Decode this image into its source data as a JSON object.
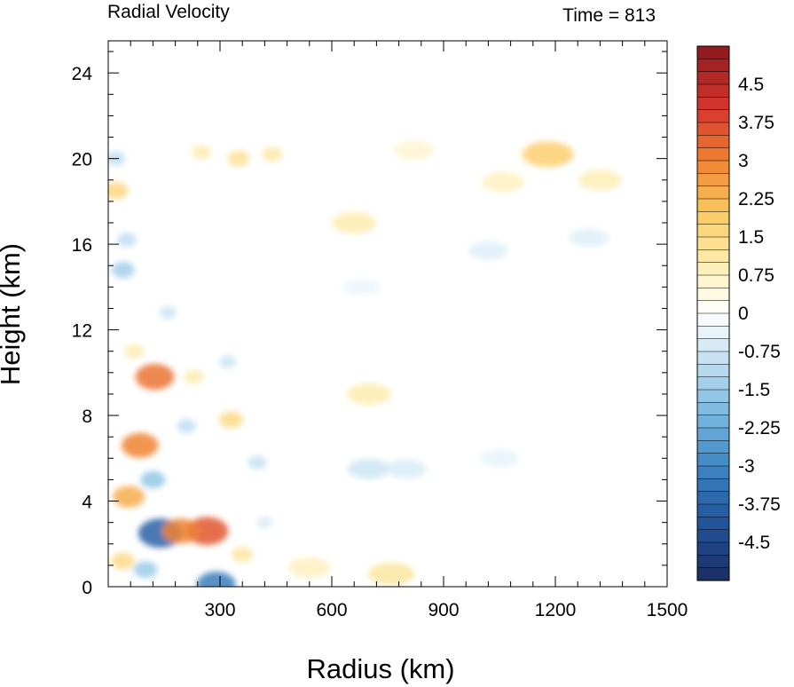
{
  "chart_data": {
    "type": "heatmap",
    "title_left": "Radial Velocity",
    "title_right": "Time = 813",
    "xlabel": "Radius (km)",
    "ylabel": "Height (km)",
    "xlim": [
      0,
      1500
    ],
    "ylim": [
      0,
      25.5
    ],
    "x_ticks": [
      300,
      600,
      900,
      1200,
      1500
    ],
    "y_ticks": [
      0,
      4,
      8,
      12,
      16,
      20,
      24
    ],
    "colorbar": {
      "min": -5.25,
      "max": 5.25,
      "step": 0.25,
      "labels": [
        "4.5",
        "3.75",
        "3",
        "2.25",
        "1.5",
        "0.75",
        "0",
        "-0.75",
        "-1.5",
        "-2.25",
        "-3",
        "-3.75",
        "-4.5"
      ],
      "label_values": [
        4.5,
        3.75,
        3,
        2.25,
        1.5,
        0.75,
        0,
        -0.75,
        -1.5,
        -2.25,
        -3,
        -3.75,
        -4.5
      ]
    },
    "features": [
      {
        "x": 125,
        "y": 9.8,
        "value": 3.2
      },
      {
        "x": 265,
        "y": 2.6,
        "value": 3.6
      },
      {
        "x": 85,
        "y": 6.6,
        "value": 3.0
      },
      {
        "x": 55,
        "y": 4.2,
        "value": 2.4
      },
      {
        "x": 140,
        "y": 2.5,
        "value": -3.8
      },
      {
        "x": 290,
        "y": 0.1,
        "value": -3.2
      },
      {
        "x": 195,
        "y": 2.6,
        "value": 3.0
      },
      {
        "x": 1180,
        "y": 20.2,
        "value": 1.8
      },
      {
        "x": 1320,
        "y": 19.0,
        "value": 0.9
      },
      {
        "x": 1060,
        "y": 18.9,
        "value": 0.8
      },
      {
        "x": 660,
        "y": 17.0,
        "value": 1.0
      },
      {
        "x": 820,
        "y": 20.4,
        "value": 0.6
      },
      {
        "x": 440,
        "y": 20.2,
        "value": 1.1
      },
      {
        "x": 350,
        "y": 20.0,
        "value": 1.3
      },
      {
        "x": 250,
        "y": 20.3,
        "value": 1.0
      },
      {
        "x": 20,
        "y": 18.5,
        "value": 1.6
      },
      {
        "x": 20,
        "y": 20.0,
        "value": -1.0
      },
      {
        "x": 40,
        "y": 14.8,
        "value": -1.4
      },
      {
        "x": 50,
        "y": 16.2,
        "value": -1.0
      },
      {
        "x": 700,
        "y": 9.0,
        "value": 1.0
      },
      {
        "x": 700,
        "y": 5.5,
        "value": -0.8
      },
      {
        "x": 800,
        "y": 5.5,
        "value": -0.6
      },
      {
        "x": 400,
        "y": 5.8,
        "value": -0.9
      },
      {
        "x": 330,
        "y": 7.8,
        "value": 1.5
      },
      {
        "x": 230,
        "y": 9.8,
        "value": 1.0
      },
      {
        "x": 210,
        "y": 7.5,
        "value": -1.0
      },
      {
        "x": 40,
        "y": 1.2,
        "value": 1.5
      },
      {
        "x": 100,
        "y": 0.8,
        "value": -1.5
      },
      {
        "x": 540,
        "y": 0.9,
        "value": 0.8
      },
      {
        "x": 760,
        "y": 0.6,
        "value": 1.2
      },
      {
        "x": 1020,
        "y": 15.7,
        "value": -0.5
      },
      {
        "x": 1050,
        "y": 6.0,
        "value": -0.4
      },
      {
        "x": 680,
        "y": 14.0,
        "value": -0.3
      },
      {
        "x": 1290,
        "y": 16.3,
        "value": -0.5
      },
      {
        "x": 120,
        "y": 5.0,
        "value": -1.6
      },
      {
        "x": 70,
        "y": 11.0,
        "value": 1.0
      },
      {
        "x": 160,
        "y": 12.8,
        "value": -0.8
      },
      {
        "x": 320,
        "y": 10.5,
        "value": -0.8
      },
      {
        "x": 420,
        "y": 3.0,
        "value": -0.6
      },
      {
        "x": 360,
        "y": 1.5,
        "value": 1.2
      }
    ]
  }
}
